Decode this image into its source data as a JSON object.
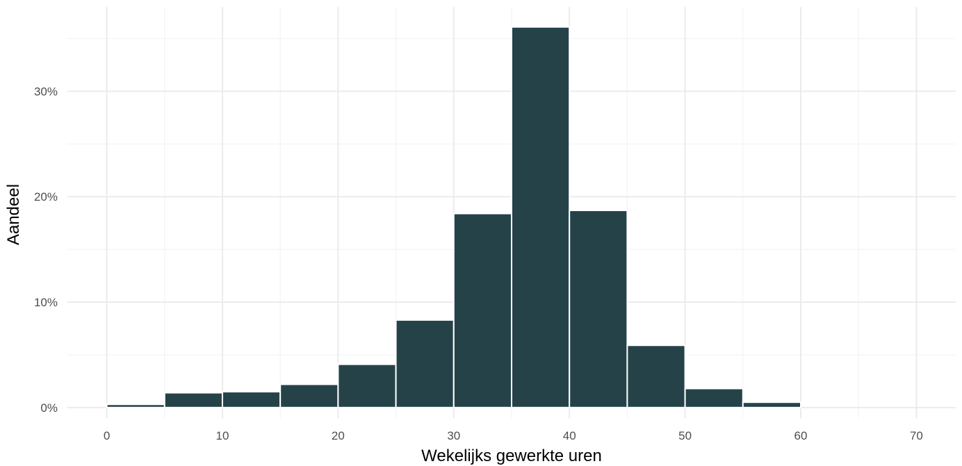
{
  "chart_data": {
    "type": "bar",
    "title": "",
    "xlabel": "Wekelijks gewerkte uren",
    "ylabel": "Aandeel",
    "bin_width": 5,
    "bins": [
      {
        "x0": 0,
        "x1": 5,
        "value": 0.3
      },
      {
        "x0": 5,
        "x1": 10,
        "value": 1.4
      },
      {
        "x0": 10,
        "x1": 15,
        "value": 1.5
      },
      {
        "x0": 15,
        "x1": 20,
        "value": 2.2
      },
      {
        "x0": 20,
        "x1": 25,
        "value": 4.1
      },
      {
        "x0": 25,
        "x1": 30,
        "value": 8.3
      },
      {
        "x0": 30,
        "x1": 35,
        "value": 18.4
      },
      {
        "x0": 35,
        "x1": 40,
        "value": 36.1
      },
      {
        "x0": 40,
        "x1": 45,
        "value": 18.7
      },
      {
        "x0": 45,
        "x1": 50,
        "value": 5.9
      },
      {
        "x0": 50,
        "x1": 55,
        "value": 1.8
      },
      {
        "x0": 55,
        "x1": 60,
        "value": 0.5
      },
      {
        "x0": 60,
        "x1": 65,
        "value": 0.0
      },
      {
        "x0": 65,
        "x1": 70,
        "value": 0.0
      }
    ],
    "xlim": [
      -3.4,
      73.4
    ],
    "ylim": [
      -1.0,
      38.0
    ],
    "x_ticks": [
      0,
      10,
      20,
      30,
      40,
      50,
      60,
      70
    ],
    "x_tick_labels": [
      "0",
      "10",
      "20",
      "30",
      "40",
      "50",
      "60",
      "70"
    ],
    "y_ticks": [
      0,
      10,
      20,
      30
    ],
    "y_tick_labels": [
      "0%",
      "10%",
      "20%",
      "30%"
    ],
    "grid": true,
    "legend": "none",
    "bar_color": "#264249",
    "grid_color": "#ebebeb"
  }
}
